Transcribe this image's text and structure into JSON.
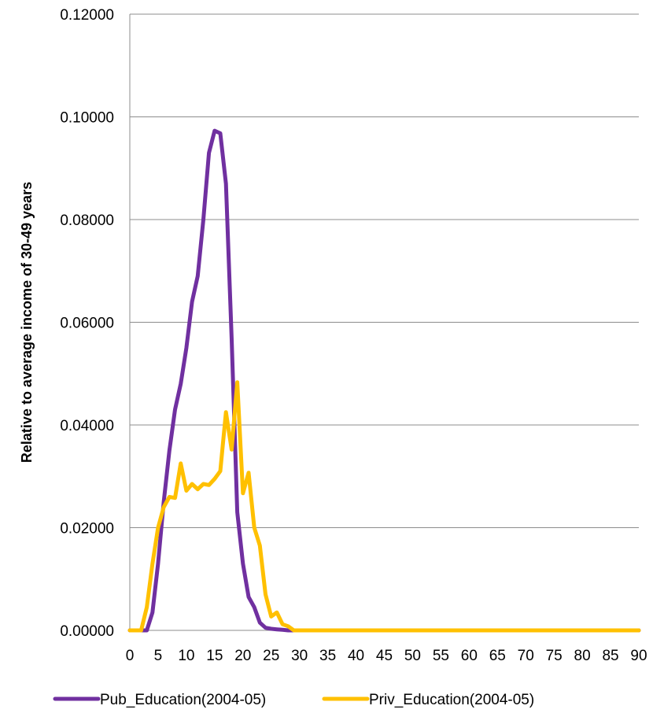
{
  "chart_data": {
    "type": "line",
    "ylabel": "Relative to average income of 30-49 years",
    "xlabel": "",
    "title": "",
    "xlim": [
      0,
      90
    ],
    "ylim": [
      0,
      0.12
    ],
    "x_ticks": [
      "0",
      "5",
      "10",
      "15",
      "20",
      "25",
      "30",
      "35",
      "40",
      "45",
      "50",
      "55",
      "60",
      "65",
      "70",
      "75",
      "80",
      "85",
      "90"
    ],
    "y_ticks": [
      "0.00000",
      "0.02000",
      "0.04000",
      "0.06000",
      "0.08000",
      "0.10000",
      "0.12000"
    ],
    "grid": "horizontal",
    "legend_position": "bottom",
    "series": [
      {
        "name": "Pub_Education(2004-05)",
        "color": "#7030A0",
        "x": [
          0,
          1,
          2,
          3,
          4,
          5,
          6,
          7,
          8,
          9,
          10,
          11,
          12,
          13,
          14,
          15,
          16,
          17,
          18,
          19,
          20,
          21,
          22,
          23,
          24,
          25,
          26,
          27,
          28,
          29,
          30,
          90
        ],
        "values": [
          0,
          0,
          0,
          0,
          0.0035,
          0.013,
          0.025,
          0.035,
          0.043,
          0.048,
          0.055,
          0.064,
          0.069,
          0.08,
          0.093,
          0.0973,
          0.0968,
          0.087,
          0.057,
          0.023,
          0.013,
          0.0065,
          0.0045,
          0.0015,
          0.0005,
          0.0003,
          0.0002,
          0.0001,
          0,
          0,
          0,
          0
        ]
      },
      {
        "name": "Priv_Education(2004-05)",
        "color": "#FFC000",
        "x": [
          0,
          1,
          2,
          3,
          4,
          5,
          6,
          7,
          8,
          9,
          10,
          11,
          12,
          13,
          14,
          15,
          16,
          17,
          18,
          19,
          20,
          21,
          22,
          23,
          24,
          25,
          26,
          27,
          28,
          29,
          30,
          90
        ],
        "values": [
          0,
          0,
          0,
          0.0045,
          0.013,
          0.02,
          0.024,
          0.026,
          0.0258,
          0.0325,
          0.0272,
          0.0285,
          0.0275,
          0.0285,
          0.0283,
          0.0295,
          0.031,
          0.0425,
          0.0352,
          0.0483,
          0.0267,
          0.0307,
          0.02,
          0.0165,
          0.007,
          0.0027,
          0.0035,
          0.0012,
          0.0008,
          0,
          0,
          0
        ]
      }
    ]
  }
}
